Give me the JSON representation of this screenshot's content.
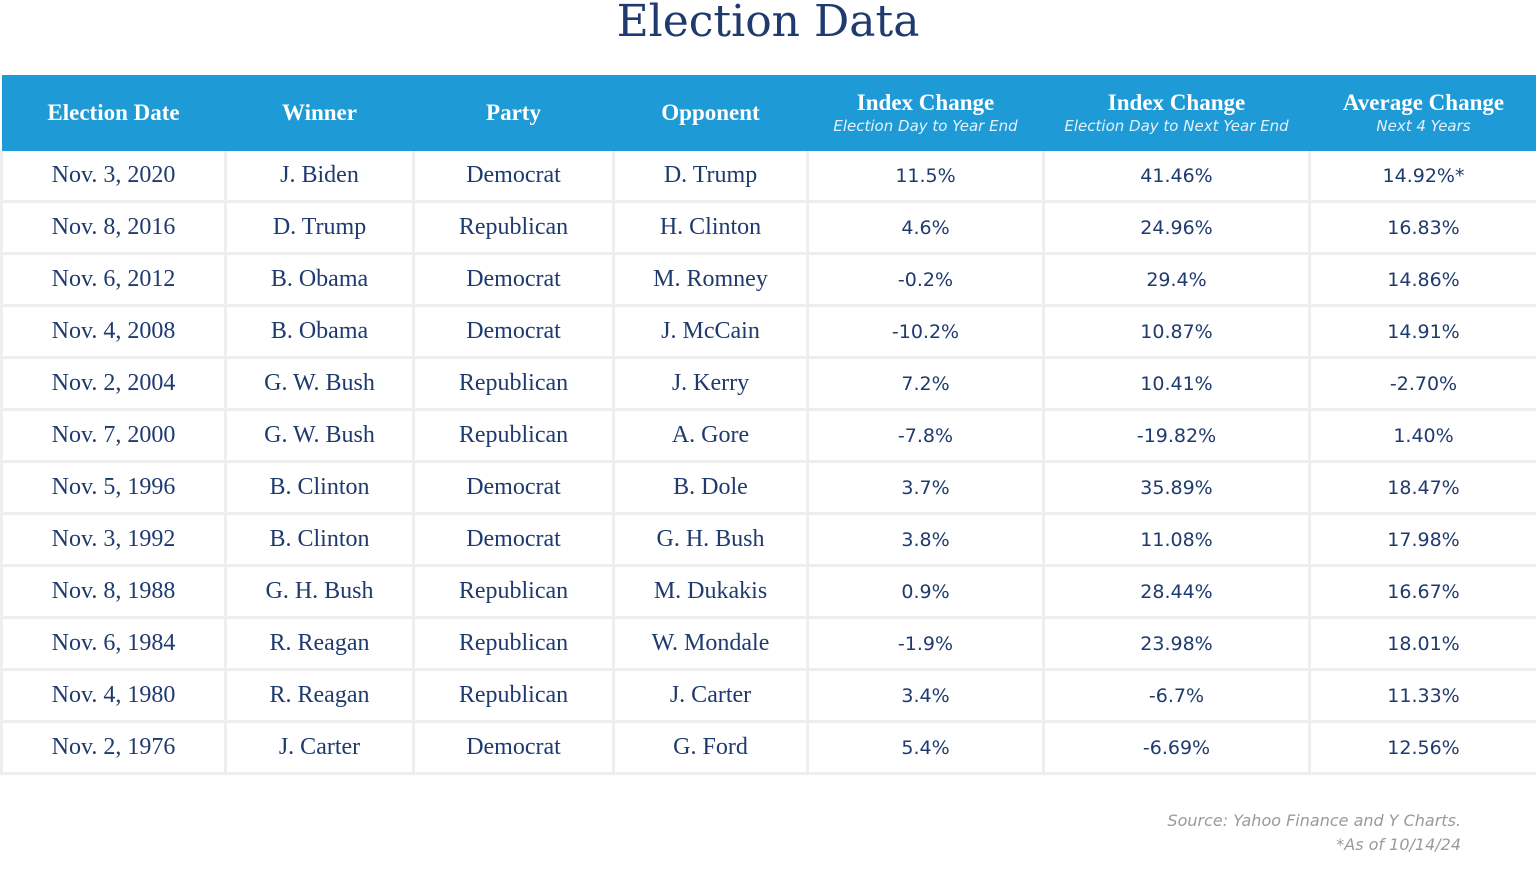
{
  "title": "Election Data",
  "table": {
    "columns": [
      {
        "title": "Election Date"
      },
      {
        "title": "Winner"
      },
      {
        "title": "Party"
      },
      {
        "title": "Opponent"
      },
      {
        "title": "Index Change",
        "subtitle": "Election Day to Year End"
      },
      {
        "title": "Index Change",
        "subtitle": "Election Day to Next Year End"
      },
      {
        "title": "Average Change",
        "subtitle": "Next 4 Years"
      }
    ],
    "rows": [
      [
        "Nov. 3, 2020",
        "J. Biden",
        "Democrat",
        "D. Trump",
        "11.5%",
        "41.46%",
        "14.92%*"
      ],
      [
        "Nov. 8, 2016",
        "D. Trump",
        "Republican",
        "H. Clinton",
        "4.6%",
        "24.96%",
        "16.83%"
      ],
      [
        "Nov. 6, 2012",
        "B. Obama",
        "Democrat",
        "M. Romney",
        "-0.2%",
        "29.4%",
        "14.86%"
      ],
      [
        "Nov. 4, 2008",
        "B. Obama",
        "Democrat",
        "J. McCain",
        "-10.2%",
        "10.87%",
        "14.91%"
      ],
      [
        "Nov. 2, 2004",
        "G. W. Bush",
        "Republican",
        "J. Kerry",
        "7.2%",
        "10.41%",
        "-2.70%"
      ],
      [
        "Nov. 7, 2000",
        "G. W. Bush",
        "Republican",
        "A. Gore",
        "-7.8%",
        "-19.82%",
        "1.40%"
      ],
      [
        "Nov. 5, 1996",
        "B. Clinton",
        "Democrat",
        "B. Dole",
        "3.7%",
        "35.89%",
        "18.47%"
      ],
      [
        "Nov. 3, 1992",
        "B. Clinton",
        "Democrat",
        "G. H. Bush",
        "3.8%",
        "11.08%",
        "17.98%"
      ],
      [
        "Nov. 8, 1988",
        "G. H. Bush",
        "Republican",
        "M. Dukakis",
        "0.9%",
        "28.44%",
        "16.67%"
      ],
      [
        "Nov. 6, 1984",
        "R. Reagan",
        "Republican",
        "W. Mondale",
        "-1.9%",
        "23.98%",
        "18.01%"
      ],
      [
        "Nov. 4, 1980",
        "R. Reagan",
        "Republican",
        "J. Carter",
        "3.4%",
        "-6.7%",
        "11.33%"
      ],
      [
        "Nov. 2, 1976",
        "J. Carter",
        "Democrat",
        "G. Ford",
        "5.4%",
        "-6.69%",
        "12.56%"
      ]
    ]
  },
  "footnotes": [
    "Source: Yahoo Finance and Y Charts.",
    "*As of 10/14/24"
  ]
}
